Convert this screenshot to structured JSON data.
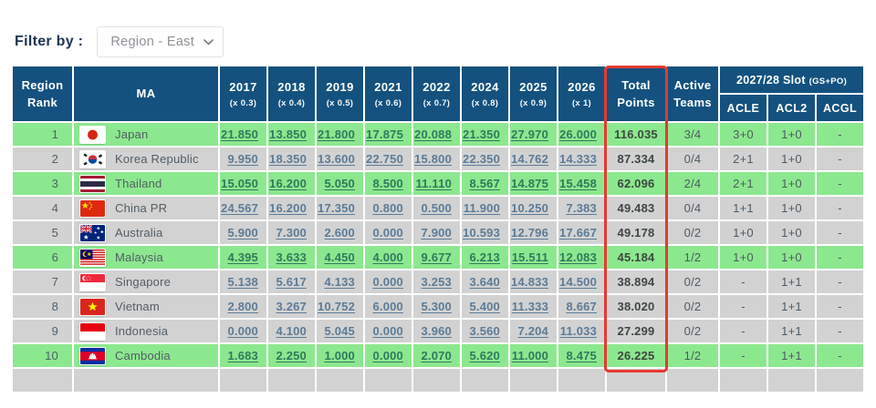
{
  "filter": {
    "label": "Filter by :",
    "selected": "Region - East"
  },
  "colors": {
    "header_bg": "#14517f",
    "row_green": "#8ce88f",
    "row_gray": "#d2d2d2",
    "highlight_red": "#e63a2e",
    "link_on_gray": "#5b7b97",
    "link_on_green": "#2f7a5c"
  },
  "table": {
    "header": {
      "rank_l1": "Region",
      "rank_l2": "Rank",
      "ma": "MA",
      "years": [
        {
          "label": "2017",
          "factor": "(x 0.3)"
        },
        {
          "label": "2018",
          "factor": "(x 0.4)"
        },
        {
          "label": "2019",
          "factor": "(x 0.5)"
        },
        {
          "label": "2021",
          "factor": "(x 0.6)"
        },
        {
          "label": "2022",
          "factor": "(x 0.7)"
        },
        {
          "label": "2024",
          "factor": "(x 0.8)"
        },
        {
          "label": "2025",
          "factor": "(x 0.9)"
        },
        {
          "label": "2026",
          "factor": "(x 1)"
        }
      ],
      "total_l1": "Total",
      "total_l2": "Points",
      "active_l1": "Active",
      "active_l2": "Teams",
      "slot_label": "2027/28 Slot",
      "slot_sub": "(GS+PO)",
      "slot_cols": [
        "ACLE",
        "ACL2",
        "ACGL"
      ]
    },
    "rows": [
      {
        "rank": "1",
        "country": "Japan",
        "flag": "flag-japan",
        "row_color": "green",
        "points": [
          "21.850",
          "13.850",
          "21.800",
          "17.875",
          "20.088",
          "21.350",
          "27.970",
          "26.000"
        ],
        "total": "116.035",
        "active": "3/4",
        "slots": [
          "3+0",
          "1+0",
          "-"
        ]
      },
      {
        "rank": "2",
        "country": "Korea Republic",
        "flag": "flag-korea",
        "row_color": "gray",
        "points": [
          "9.950",
          "18.350",
          "13.600",
          "22.750",
          "15.800",
          "22.350",
          "14.762",
          "14.333"
        ],
        "total": "87.334",
        "active": "0/4",
        "slots": [
          "2+1",
          "1+0",
          "-"
        ]
      },
      {
        "rank": "3",
        "country": "Thailand",
        "flag": "flag-thailand",
        "row_color": "green",
        "points": [
          "15.050",
          "16.200",
          "5.050",
          "8.500",
          "11.110",
          "8.567",
          "14.875",
          "15.458"
        ],
        "total": "62.096",
        "active": "2/4",
        "slots": [
          "2+1",
          "1+0",
          "-"
        ]
      },
      {
        "rank": "4",
        "country": "China PR",
        "flag": "flag-china",
        "row_color": "gray",
        "points": [
          "24.567",
          "16.200",
          "17.350",
          "0.800",
          "0.500",
          "11.900",
          "10.250",
          "7.383"
        ],
        "total": "49.483",
        "active": "0/4",
        "slots": [
          "1+1",
          "1+0",
          "-"
        ]
      },
      {
        "rank": "5",
        "country": "Australia",
        "flag": "flag-australia",
        "row_color": "gray",
        "points": [
          "5.900",
          "7.300",
          "2.600",
          "0.000",
          "7.900",
          "10.593",
          "12.796",
          "17.667"
        ],
        "total": "49.178",
        "active": "0/2",
        "slots": [
          "1+0",
          "1+0",
          "-"
        ]
      },
      {
        "rank": "6",
        "country": "Malaysia",
        "flag": "flag-malaysia",
        "row_color": "green",
        "points": [
          "4.395",
          "3.633",
          "4.450",
          "4.000",
          "9.677",
          "6.213",
          "15.511",
          "12.083"
        ],
        "total": "45.184",
        "active": "1/2",
        "slots": [
          "1+0",
          "1+0",
          "-"
        ]
      },
      {
        "rank": "7",
        "country": "Singapore",
        "flag": "flag-singapore",
        "row_color": "gray",
        "points": [
          "5.138",
          "5.617",
          "4.133",
          "0.000",
          "3.253",
          "3.640",
          "14.833",
          "14.500"
        ],
        "total": "38.894",
        "active": "0/2",
        "slots": [
          "-",
          "1+1",
          "-"
        ]
      },
      {
        "rank": "8",
        "country": "Vietnam",
        "flag": "flag-vietnam",
        "row_color": "gray",
        "points": [
          "2.800",
          "3.267",
          "10.752",
          "6.000",
          "5.300",
          "5.400",
          "11.333",
          "8.667"
        ],
        "total": "38.020",
        "active": "0/2",
        "slots": [
          "-",
          "1+1",
          "-"
        ]
      },
      {
        "rank": "9",
        "country": "Indonesia",
        "flag": "flag-indonesia",
        "row_color": "gray",
        "points": [
          "0.000",
          "4.100",
          "5.045",
          "0.000",
          "3.960",
          "3.560",
          "7.204",
          "11.033"
        ],
        "total": "27.299",
        "active": "0/2",
        "slots": [
          "-",
          "1+1",
          "-"
        ]
      },
      {
        "rank": "10",
        "country": "Cambodia",
        "flag": "flag-cambodia",
        "row_color": "green",
        "points": [
          "1.683",
          "2.250",
          "1.000",
          "0.000",
          "2.070",
          "5.620",
          "11.000",
          "8.475"
        ],
        "total": "26.225",
        "active": "1/2",
        "slots": [
          "-",
          "1+1",
          "-"
        ]
      }
    ]
  }
}
